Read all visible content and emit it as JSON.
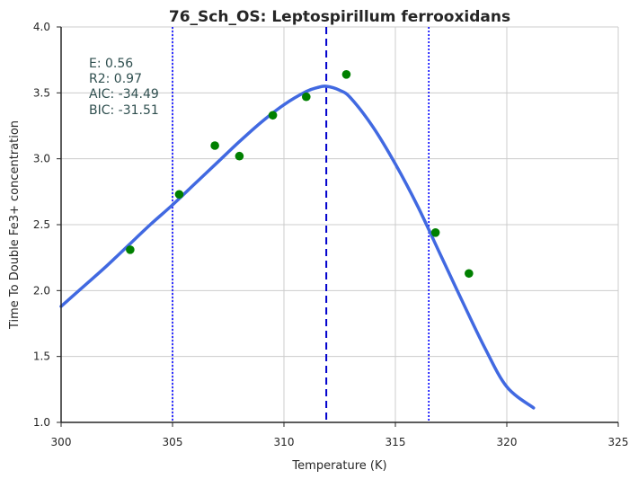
{
  "chart_data": {
    "type": "scatter",
    "title": "76_Sch_OS: Leptospirillum ferrooxidans",
    "xlabel": "Temperature (K)",
    "ylabel": "Time To Double Fe3+ concentration",
    "xlim": [
      300,
      325
    ],
    "ylim": [
      1.0,
      4.0
    ],
    "x_ticks": [
      "300",
      "305",
      "310",
      "315",
      "320",
      "325"
    ],
    "y_ticks": [
      "1.0",
      "1.5",
      "2.0",
      "2.5",
      "3.0",
      "3.5",
      "4.0"
    ],
    "x_tick_values": [
      300,
      305,
      310,
      315,
      320,
      325
    ],
    "y_tick_values": [
      1.0,
      1.5,
      2.0,
      2.5,
      3.0,
      3.5,
      4.0
    ],
    "grid": true,
    "points": {
      "color": "#008000",
      "x": [
        303.1,
        305.3,
        306.9,
        308.0,
        309.5,
        311.0,
        312.8,
        316.8,
        318.3
      ],
      "y": [
        2.31,
        2.73,
        3.1,
        3.02,
        3.33,
        3.47,
        3.64,
        2.44,
        2.13
      ]
    },
    "fit_curve": {
      "color": "#4169e1",
      "x": [
        300.0,
        301.0,
        302.0,
        303.0,
        304.0,
        305.0,
        306.0,
        307.0,
        308.0,
        309.0,
        310.0,
        311.0,
        311.5,
        311.9,
        312.5,
        313.0,
        314.0,
        315.0,
        316.0,
        317.0,
        318.0,
        319.0,
        320.0,
        321.2
      ],
      "y": [
        1.88,
        2.03,
        2.18,
        2.34,
        2.5,
        2.65,
        2.81,
        2.97,
        3.13,
        3.28,
        3.41,
        3.51,
        3.54,
        3.55,
        3.52,
        3.46,
        3.24,
        2.96,
        2.64,
        2.28,
        1.92,
        1.57,
        1.27,
        1.11
      ]
    },
    "vlines": [
      {
        "x": 311.9,
        "style": "dashed",
        "color": "#0000cd"
      },
      {
        "x": 305.0,
        "style": "dotted",
        "color": "#0000ff"
      },
      {
        "x": 316.5,
        "style": "dotted",
        "color": "#0000ff"
      }
    ],
    "stats": {
      "e": "E:  0.56",
      "r2": "R2:  0.97",
      "aic": "AIC: -34.49",
      "bic": "BIC: -31.51"
    }
  }
}
